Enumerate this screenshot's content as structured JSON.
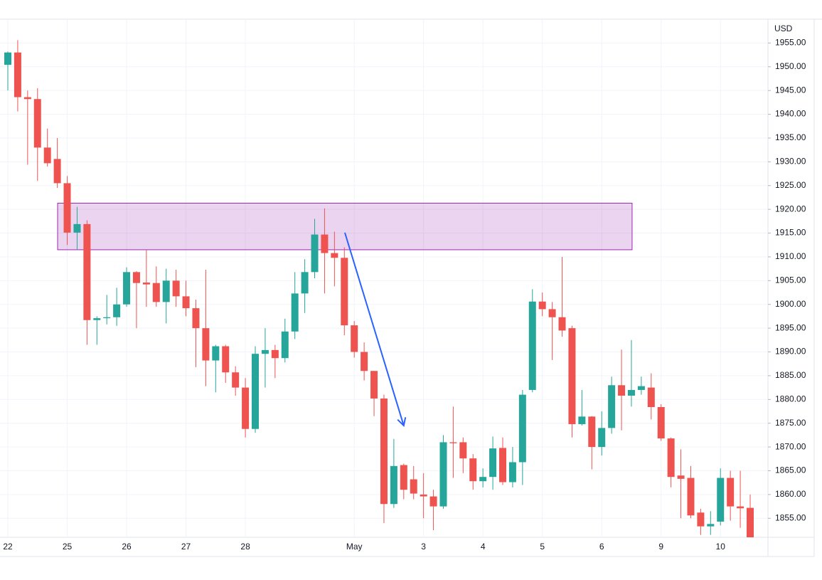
{
  "chart_data": {
    "type": "candlestick",
    "currency": "USD",
    "categories": [
      "22",
      null,
      null,
      null,
      null,
      null,
      "25",
      null,
      null,
      null,
      null,
      null,
      "26",
      null,
      null,
      null,
      null,
      null,
      "27",
      null,
      null,
      null,
      null,
      null,
      "28",
      null,
      null,
      null,
      null,
      null,
      null,
      null,
      null,
      null,
      null,
      "May",
      null,
      null,
      null,
      null,
      null,
      null,
      "3",
      null,
      null,
      null,
      null,
      null,
      "4",
      null,
      null,
      null,
      null,
      null,
      "5",
      null,
      null,
      null,
      null,
      null,
      "6",
      null,
      null,
      null,
      null,
      null,
      "9",
      null,
      null,
      null,
      null,
      null,
      "10",
      null,
      null,
      null
    ],
    "open": [
      1950.4,
      1953,
      1943.6,
      1943.2,
      1933,
      1930.6,
      1925.5,
      1915.1,
      1916.9,
      1896.7,
      1897.1,
      1897.3,
      1900,
      1906.8,
      1904.6,
      1904.5,
      1900.5,
      1905,
      1901.7,
      1899.2,
      1895,
      1888.2,
      1891.2,
      1885.7,
      1882.5,
      1873.8,
      1889.6,
      1890.4,
      1888.7,
      1894.3,
      1902.3,
      1906.8,
      1914.7,
      1910.8,
      1909.8,
      1895.6,
      1890,
      1886,
      1880.2,
      1858,
      1866.2,
      1863.2,
      1860,
      1859.6,
      1857.5,
      1871,
      1871,
      1867.6,
      1862.8,
      1863.7,
      1869.8,
      1862.6,
      1866.8,
      1882,
      1900.6,
      1899,
      1897.3,
      1895,
      1874.8,
      1876.4,
      1870,
      1874,
      1883,
      1880.8,
      1882,
      1882.5,
      1878.4,
      1871.8,
      1864,
      1863.5,
      1856.2,
      1853.3,
      1854.3,
      1863.5,
      1857.5,
      1857.2
    ],
    "high": [
      1953.2,
      1955.6,
      1945,
      1945.5,
      1937,
      1935,
      1927,
      1920.5,
      1917.7,
      1897.5,
      1902,
      1903.5,
      1907.8,
      1907,
      1911.5,
      1908,
      1907.5,
      1907.3,
      1905,
      1901,
      1907.3,
      1891.5,
      1891.5,
      1887,
      1884.5,
      1891.2,
      1895,
      1891.5,
      1897,
      1906.8,
      1909.5,
      1918,
      1920.2,
      1915.3,
      1912,
      1896.5,
      1892,
      1886,
      1881,
      1871.7,
      1866.5,
      1866,
      1864.5,
      1861,
      1872.5,
      1878.5,
      1872,
      1868.5,
      1865.5,
      1872.2,
      1872,
      1870,
      1882,
      1903.2,
      1902.5,
      1900.5,
      1910,
      1895.5,
      1882,
      1876.5,
      1877.5,
      1884.8,
      1890.5,
      1892.5,
      1884.8,
      1885.5,
      1879,
      1872,
      1869.5,
      1866,
      1857,
      1856.5,
      1865.5,
      1865,
      1865,
      1860
    ],
    "low": [
      1945,
      1940.6,
      1929.4,
      1926,
      1929,
      1924.5,
      1912.5,
      1911.5,
      1891.5,
      1891.5,
      1895.8,
      1895.5,
      1899.5,
      1895,
      1899.5,
      1899.5,
      1896,
      1899.5,
      1897.5,
      1886.8,
      1882.8,
      1881.5,
      1883.5,
      1880.8,
      1872,
      1873,
      1882.5,
      1884.5,
      1887.8,
      1892.7,
      1898.2,
      1905.5,
      1902.3,
      1903.8,
      1893.5,
      1888.8,
      1884,
      1876.5,
      1854,
      1857.2,
      1859,
      1859,
      1855,
      1852.5,
      1857,
      1863.5,
      1864.5,
      1861,
      1861.5,
      1861,
      1862,
      1861.5,
      1862,
      1881.5,
      1897.5,
      1888.3,
      1893.2,
      1872,
      1874.5,
      1865.3,
      1868.2,
      1872.8,
      1873.5,
      1878.5,
      1881,
      1875.8,
      1871.3,
      1861.5,
      1855,
      1855,
      1851.5,
      1851.5,
      1853.5,
      1854.5,
      1853,
      1851
    ],
    "close": [
      1953,
      1943.6,
      1943.2,
      1933,
      1929.7,
      1925.5,
      1915.1,
      1916.9,
      1896.7,
      1897.1,
      1897.3,
      1900,
      1906.8,
      1904.5,
      1904.2,
      1900.5,
      1905,
      1901.7,
      1899.2,
      1895,
      1888.2,
      1891.2,
      1885.7,
      1882.5,
      1873.8,
      1889.6,
      1890.4,
      1888.7,
      1894.3,
      1902.3,
      1906.8,
      1914.7,
      1910.8,
      1909.8,
      1895.6,
      1890,
      1886,
      1880.2,
      1858,
      1866,
      1861,
      1860.2,
      1859.6,
      1857.5,
      1871,
      1870.8,
      1867.6,
      1862.8,
      1863.7,
      1869.7,
      1862.6,
      1866.8,
      1881,
      1900.6,
      1899,
      1897.3,
      1894.5,
      1874.8,
      1876.4,
      1870,
      1874,
      1883,
      1880.8,
      1882,
      1882.8,
      1878.4,
      1871.8,
      1863.7,
      1863.3,
      1855.6,
      1853.3,
      1853.8,
      1863.5,
      1857.5,
      1857.1,
      1851
    ],
    "up_color": "#26a69a",
    "down_color": "#ef5350",
    "ylim": [
      1851,
      1960
    ],
    "yticks": [
      {
        "value": 1855,
        "label": "1855.00"
      },
      {
        "value": 1860,
        "label": "1860.00"
      },
      {
        "value": 1865,
        "label": "1865.00"
      },
      {
        "value": 1870,
        "label": "1870.00"
      },
      {
        "value": 1875,
        "label": "1875.00"
      },
      {
        "value": 1880,
        "label": "1880.00"
      },
      {
        "value": 1885,
        "label": "1885.00"
      },
      {
        "value": 1890,
        "label": "1890.00"
      },
      {
        "value": 1895,
        "label": "1895.00"
      },
      {
        "value": 1900,
        "label": "1900.00"
      },
      {
        "value": 1905,
        "label": "1905.00"
      },
      {
        "value": 1910,
        "label": "1910.00"
      },
      {
        "value": 1915,
        "label": "1915.00"
      },
      {
        "value": 1920,
        "label": "1920.00"
      },
      {
        "value": 1925,
        "label": "1925.00"
      },
      {
        "value": 1930,
        "label": "1930.00"
      },
      {
        "value": 1935,
        "label": "1935.00"
      },
      {
        "value": 1940,
        "label": "1940.00"
      },
      {
        "value": 1945,
        "label": "1945.00"
      },
      {
        "value": 1950,
        "label": "1950.00"
      },
      {
        "value": 1955,
        "label": "1955.00"
      }
    ],
    "grid": true,
    "zone": {
      "x": [
        5.03,
        63.07
      ],
      "y": [
        1911.5,
        1921.3
      ],
      "color": "#9c27b0"
    },
    "arrow": {
      "x": [
        34.05,
        40.0
      ],
      "y": [
        1915.1,
        1874.5
      ],
      "color": "#2962ff"
    }
  }
}
